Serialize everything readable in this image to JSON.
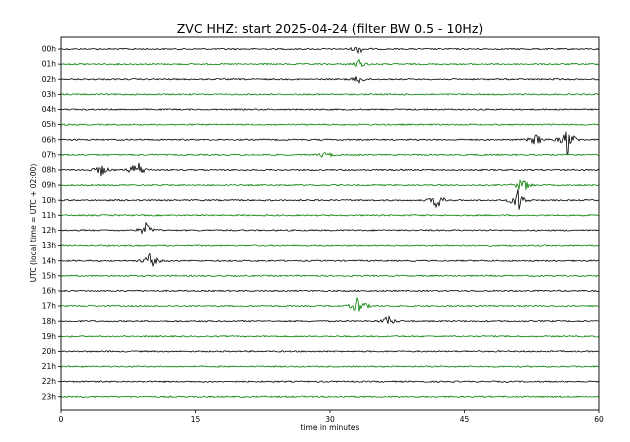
{
  "chart_data": {
    "type": "line",
    "title": "ZVC HHZ: start 2025-04-24 (filter BW 0.5 - 10Hz)",
    "xlabel": "time in minutes",
    "ylabel": "UTC (local time = UTC + 02:00)",
    "xlim": [
      0,
      60
    ],
    "x_ticks": [
      0,
      15,
      30,
      45,
      60
    ],
    "x_tick_labels": [
      "0",
      "15",
      "30",
      "45",
      "60"
    ],
    "rows": [
      "00h",
      "01h",
      "02h",
      "03h",
      "04h",
      "05h",
      "06h",
      "07h",
      "08h",
      "09h",
      "10h",
      "11h",
      "12h",
      "13h",
      "14h",
      "15h",
      "16h",
      "17h",
      "18h",
      "19h",
      "20h",
      "21h",
      "22h",
      "23h"
    ],
    "row_colors": [
      "#000000",
      "#008000"
    ],
    "grid": false,
    "events": [
      {
        "hour": 0,
        "minute": 33.2,
        "amplitude": 0.6
      },
      {
        "hour": 1,
        "minute": 33.2,
        "amplitude": 0.6
      },
      {
        "hour": 2,
        "minute": 33.2,
        "amplitude": 0.6
      },
      {
        "hour": 6,
        "minute": 53.0,
        "amplitude": 1.0
      },
      {
        "hour": 6,
        "minute": 56.5,
        "amplitude": 2.2
      },
      {
        "hour": 7,
        "minute": 29.5,
        "amplitude": 0.5
      },
      {
        "hour": 8,
        "minute": 4.5,
        "amplitude": 0.9
      },
      {
        "hour": 8,
        "minute": 8.5,
        "amplitude": 1.6
      },
      {
        "hour": 9,
        "minute": 51.5,
        "amplitude": 1.2
      },
      {
        "hour": 10,
        "minute": 42.0,
        "amplitude": 1.3
      },
      {
        "hour": 10,
        "minute": 51.0,
        "amplitude": 1.8
      },
      {
        "hour": 12,
        "minute": 9.5,
        "amplitude": 1.0
      },
      {
        "hour": 14,
        "minute": 10.0,
        "amplitude": 1.2
      },
      {
        "hour": 17,
        "minute": 33.2,
        "amplitude": 1.5
      },
      {
        "hour": 18,
        "minute": 36.5,
        "amplitude": 0.8
      }
    ]
  }
}
